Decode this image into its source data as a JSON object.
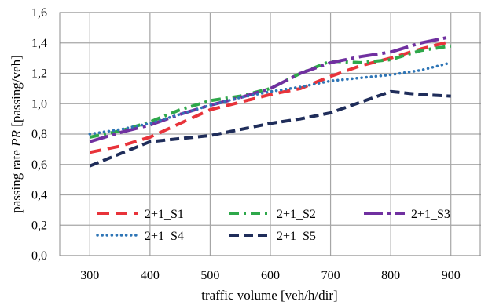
{
  "chart_data": {
    "type": "line",
    "xlabel": "traffic volume [veh/h/dir]",
    "ylabel_prefix": "passing  rate ",
    "ylabel_var": "PR",
    "ylabel_suffix": "  [passing/veh]",
    "xlim": [
      250,
      950
    ],
    "ylim": [
      0,
      1.6
    ],
    "x_ticks": [
      300,
      400,
      500,
      600,
      700,
      800,
      900
    ],
    "x_tick_labels": [
      "300",
      "400",
      "500",
      "600",
      "700",
      "800",
      "900"
    ],
    "y_ticks": [
      0,
      0.2,
      0.4,
      0.6,
      0.8,
      1.0,
      1.2,
      1.4,
      1.6
    ],
    "y_tick_labels": [
      "0,0",
      "0,2",
      "0,4",
      "0,6",
      "0,8",
      "1,0",
      "1,2",
      "1,4",
      "1,6"
    ],
    "grid": true,
    "legend_position": "bottom",
    "series": [
      {
        "name": "2+1_S1",
        "color": "#e8333a",
        "dash": "long-dash",
        "points": [
          [
            300,
            0.68
          ],
          [
            350,
            0.72
          ],
          [
            400,
            0.78
          ],
          [
            450,
            0.87
          ],
          [
            500,
            0.96
          ],
          [
            550,
            1.01
          ],
          [
            600,
            1.06
          ],
          [
            650,
            1.1
          ],
          [
            700,
            1.18
          ],
          [
            750,
            1.25
          ],
          [
            800,
            1.3
          ],
          [
            850,
            1.36
          ],
          [
            900,
            1.41
          ]
        ]
      },
      {
        "name": "2+1_S2",
        "color": "#2ea84a",
        "dash": "dash-dot",
        "points": [
          [
            300,
            0.78
          ],
          [
            350,
            0.82
          ],
          [
            400,
            0.88
          ],
          [
            450,
            0.96
          ],
          [
            500,
            1.02
          ],
          [
            550,
            1.05
          ],
          [
            600,
            1.1
          ],
          [
            650,
            1.2
          ],
          [
            700,
            1.28
          ],
          [
            750,
            1.27
          ],
          [
            800,
            1.29
          ],
          [
            850,
            1.35
          ],
          [
            900,
            1.38
          ]
        ]
      },
      {
        "name": "2+1_S3",
        "color": "#7030a0",
        "dash": "long-dash-dot",
        "points": [
          [
            300,
            0.75
          ],
          [
            350,
            0.81
          ],
          [
            400,
            0.86
          ],
          [
            450,
            0.93
          ],
          [
            500,
            0.99
          ],
          [
            550,
            1.04
          ],
          [
            600,
            1.1
          ],
          [
            650,
            1.2
          ],
          [
            700,
            1.27
          ],
          [
            750,
            1.31
          ],
          [
            800,
            1.34
          ],
          [
            850,
            1.4
          ],
          [
            900,
            1.44
          ]
        ]
      },
      {
        "name": "2+1_S4",
        "color": "#2e75b6",
        "dash": "dot",
        "points": [
          [
            300,
            0.8
          ],
          [
            350,
            0.83
          ],
          [
            400,
            0.87
          ],
          [
            450,
            0.93
          ],
          [
            500,
            0.99
          ],
          [
            550,
            1.04
          ],
          [
            600,
            1.08
          ],
          [
            650,
            1.11
          ],
          [
            700,
            1.15
          ],
          [
            750,
            1.17
          ],
          [
            800,
            1.19
          ],
          [
            850,
            1.22
          ],
          [
            900,
            1.27
          ]
        ]
      },
      {
        "name": "2+1_S5",
        "color": "#1f2d5a",
        "dash": "dash",
        "points": [
          [
            300,
            0.59
          ],
          [
            350,
            0.67
          ],
          [
            400,
            0.75
          ],
          [
            450,
            0.77
          ],
          [
            500,
            0.79
          ],
          [
            550,
            0.83
          ],
          [
            600,
            0.87
          ],
          [
            650,
            0.9
          ],
          [
            700,
            0.94
          ],
          [
            750,
            1.01
          ],
          [
            800,
            1.08
          ],
          [
            850,
            1.06
          ],
          [
            900,
            1.05
          ]
        ]
      }
    ]
  }
}
